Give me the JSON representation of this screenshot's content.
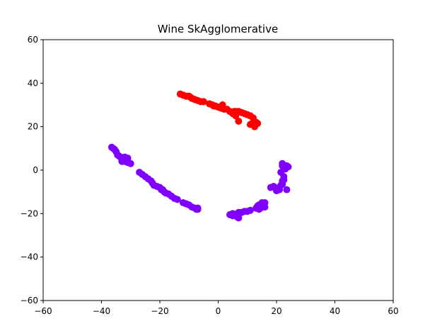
{
  "chart_data": {
    "type": "scatter",
    "title": "Wine SkAgglomerative",
    "xlabel": "",
    "ylabel": "",
    "xlim": [
      -60,
      60
    ],
    "ylim": [
      -60,
      60
    ],
    "xticks": [
      -60,
      -40,
      -20,
      0,
      20,
      40,
      60
    ],
    "yticks": [
      -60,
      -40,
      -20,
      0,
      20,
      40,
      60
    ],
    "xtick_labels": [
      "−60",
      "−40",
      "−20",
      "0",
      "20",
      "40",
      "60"
    ],
    "ytick_labels": [
      "−60",
      "−40",
      "−20",
      "0",
      "20",
      "40",
      "60"
    ],
    "grid": false,
    "legend": "none",
    "series": [
      {
        "color": "#ff0000",
        "points": [
          [
            -13,
            35
          ],
          [
            -12,
            34.5
          ],
          [
            -11,
            34
          ],
          [
            -10,
            34
          ],
          [
            -9.5,
            33.5
          ],
          [
            -9,
            33
          ],
          [
            -8,
            32.5
          ],
          [
            -7,
            32
          ],
          [
            -6,
            31.5
          ],
          [
            -5,
            31.5
          ],
          [
            -3,
            30.5
          ],
          [
            -2,
            30
          ],
          [
            -1.5,
            29.5
          ],
          [
            -1,
            29.5
          ],
          [
            0,
            29
          ],
          [
            0.5,
            29
          ],
          [
            1,
            28.5
          ],
          [
            1.5,
            30
          ],
          [
            2,
            28
          ],
          [
            3,
            28
          ],
          [
            4,
            27
          ],
          [
            5,
            26
          ],
          [
            5.5,
            27
          ],
          [
            6,
            27
          ],
          [
            6,
            25
          ],
          [
            7,
            27
          ],
          [
            7,
            22.5
          ],
          [
            8,
            26.5
          ],
          [
            9,
            26
          ],
          [
            10,
            25.5
          ],
          [
            11,
            25
          ],
          [
            11,
            21
          ],
          [
            12,
            24
          ],
          [
            12,
            22
          ],
          [
            12.5,
            20
          ],
          [
            13,
            22
          ],
          [
            13.5,
            21.5
          ]
        ]
      },
      {
        "color": "#8000ff",
        "points": [
          [
            -36.5,
            10.5
          ],
          [
            -36,
            10
          ],
          [
            -35.5,
            9.5
          ],
          [
            -35,
            8.5
          ],
          [
            -34.5,
            7
          ],
          [
            -34,
            6.5
          ],
          [
            -33.5,
            6
          ],
          [
            -33,
            5
          ],
          [
            -33,
            4
          ],
          [
            -32.5,
            5.5
          ],
          [
            -32,
            6
          ],
          [
            -32,
            4
          ],
          [
            -31.5,
            5
          ],
          [
            -31,
            5.5
          ],
          [
            -31,
            3.5
          ],
          [
            -30,
            3
          ],
          [
            -27,
            -1
          ],
          [
            -26,
            -2
          ],
          [
            -25,
            -3
          ],
          [
            -24,
            -4
          ],
          [
            -23,
            -5
          ],
          [
            -22.5,
            -6
          ],
          [
            -22,
            -7
          ],
          [
            -21,
            -7.5
          ],
          [
            -20,
            -8
          ],
          [
            -19.5,
            -9
          ],
          [
            -19,
            -9
          ],
          [
            -18.5,
            -10
          ],
          [
            -18,
            -10.5
          ],
          [
            -17,
            -11
          ],
          [
            -16,
            -12
          ],
          [
            -15,
            -13
          ],
          [
            -14,
            -13.5
          ],
          [
            -12,
            -15
          ],
          [
            -11,
            -15.5
          ],
          [
            -10,
            -16
          ],
          [
            -9,
            -17
          ],
          [
            -8,
            -17.5
          ],
          [
            -7.5,
            -18
          ],
          [
            -7,
            -17.5
          ],
          [
            -7,
            -18
          ],
          [
            4,
            -20.5
          ],
          [
            5,
            -20
          ],
          [
            5,
            -21
          ],
          [
            6,
            -20.5
          ],
          [
            6.5,
            -21.5
          ],
          [
            7,
            -22
          ],
          [
            7,
            -19.5
          ],
          [
            8,
            -19.5
          ],
          [
            9,
            -19
          ],
          [
            10,
            -19
          ],
          [
            11,
            -18.5
          ],
          [
            13,
            -17.5
          ],
          [
            13.5,
            -16.5
          ],
          [
            14,
            -18
          ],
          [
            14,
            -16
          ],
          [
            14.5,
            -17.5
          ],
          [
            15,
            -15
          ],
          [
            15.5,
            -16
          ],
          [
            16,
            -17
          ],
          [
            16,
            -15
          ],
          [
            18,
            -8
          ],
          [
            19,
            -7.5
          ],
          [
            19.5,
            -8
          ],
          [
            20,
            -9.5
          ],
          [
            21,
            -9
          ],
          [
            21.5,
            -7
          ],
          [
            22,
            -6.5
          ],
          [
            22,
            -5
          ],
          [
            22.5,
            -4.5
          ],
          [
            22.5,
            -3
          ],
          [
            21.5,
            -1
          ],
          [
            22,
            2
          ],
          [
            22,
            3
          ],
          [
            22.5,
            1
          ],
          [
            23,
            1.5
          ],
          [
            23,
            0.5
          ],
          [
            23.5,
            2
          ],
          [
            24,
            1.5
          ],
          [
            23.5,
            -9
          ]
        ]
      }
    ]
  }
}
